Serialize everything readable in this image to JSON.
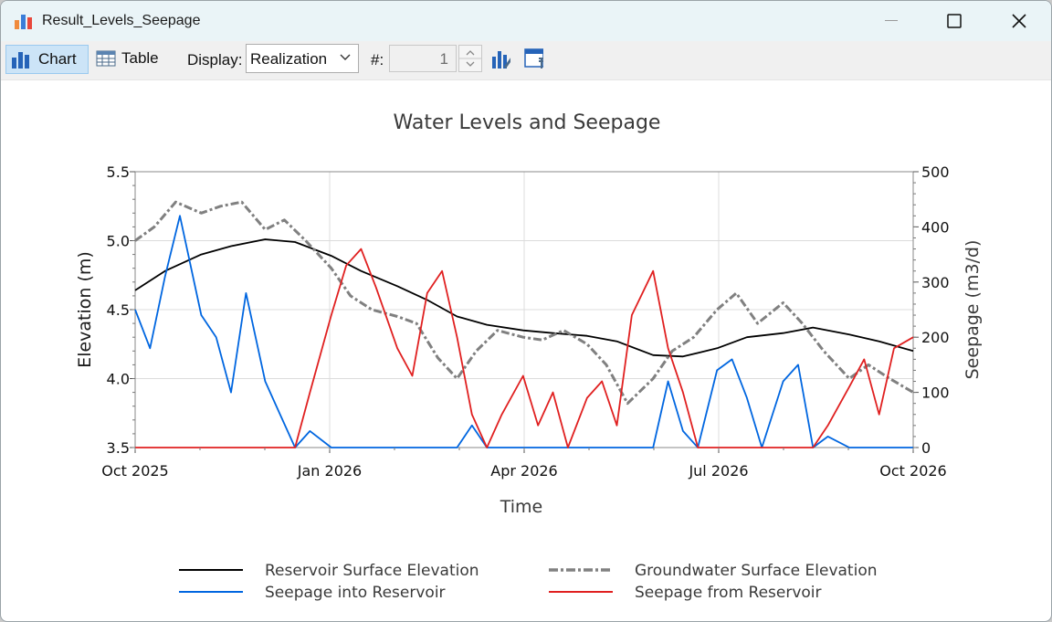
{
  "window": {
    "title": "Result_Levels_Seepage"
  },
  "toolbar": {
    "chart_label": "Chart",
    "table_label": "Table",
    "display_label": "Display:",
    "display_value": "Realization",
    "number_label": "#:",
    "number_value": "1"
  },
  "chart_data": {
    "type": "line",
    "title": "Water Levels and Seepage",
    "xlabel": "Time",
    "ylabel_left": "Elevation (m)",
    "ylabel_right": "Seepage (m3/d)",
    "x_ticks": [
      "Oct 2025",
      "Jan 2026",
      "Apr 2026",
      "Jul 2026",
      "Oct 2026"
    ],
    "x_range": [
      "2025-10-01",
      "2026-10-01"
    ],
    "ylim_left": [
      3.5,
      5.5
    ],
    "yticks_left": [
      "3.5",
      "4.0",
      "4.5",
      "5.0",
      "5.5"
    ],
    "ylim_right": [
      0,
      500
    ],
    "yticks_right": [
      "0",
      "100",
      "200",
      "300",
      "400",
      "500"
    ],
    "grid": true,
    "legend_position": "bottom",
    "series": [
      {
        "name": "Reservoir Surface Elevation",
        "axis": "left",
        "color": "#000000",
        "style": "solid",
        "x": [
          "2025-10-01",
          "2025-10-15",
          "2025-11-01",
          "2025-11-15",
          "2025-12-01",
          "2025-12-15",
          "2026-01-01",
          "2026-01-15",
          "2026-02-01",
          "2026-02-15",
          "2026-03-01",
          "2026-03-15",
          "2026-04-01",
          "2026-04-15",
          "2026-05-01",
          "2026-05-15",
          "2026-06-01",
          "2026-06-15",
          "2026-07-01",
          "2026-07-15",
          "2026-08-01",
          "2026-08-15",
          "2026-09-01",
          "2026-09-15",
          "2026-10-01"
        ],
        "values": [
          4.64,
          4.78,
          4.9,
          4.96,
          5.01,
          4.99,
          4.89,
          4.78,
          4.67,
          4.57,
          4.45,
          4.39,
          4.35,
          4.33,
          4.31,
          4.27,
          4.17,
          4.16,
          4.22,
          4.3,
          4.33,
          4.37,
          4.32,
          4.27,
          4.2
        ]
      },
      {
        "name": "Groundwater Surface Elevation",
        "axis": "left",
        "color": "#808080",
        "style": "dashdot",
        "x": [
          "2025-10-01",
          "2025-10-10",
          "2025-10-20",
          "2025-11-01",
          "2025-11-10",
          "2025-11-20",
          "2025-12-01",
          "2025-12-10",
          "2025-12-20",
          "2026-01-01",
          "2026-01-10",
          "2026-01-20",
          "2026-02-01",
          "2026-02-10",
          "2026-02-20",
          "2026-03-01",
          "2026-03-10",
          "2026-03-20",
          "2026-04-01",
          "2026-04-10",
          "2026-04-20",
          "2026-05-01",
          "2026-05-10",
          "2026-05-20",
          "2026-06-01",
          "2026-06-10",
          "2026-06-20",
          "2026-07-01",
          "2026-07-10",
          "2026-07-20",
          "2026-08-01",
          "2026-08-10",
          "2026-08-20",
          "2026-09-01",
          "2026-09-10",
          "2026-09-20",
          "2026-10-01"
        ],
        "values": [
          5.0,
          5.1,
          5.28,
          5.2,
          5.25,
          5.28,
          5.08,
          5.15,
          5.0,
          4.8,
          4.6,
          4.5,
          4.45,
          4.4,
          4.15,
          4.0,
          4.2,
          4.35,
          4.3,
          4.28,
          4.35,
          4.25,
          4.1,
          3.82,
          4.0,
          4.2,
          4.3,
          4.5,
          4.62,
          4.4,
          4.55,
          4.4,
          4.2,
          4.0,
          4.1,
          4.0,
          3.9
        ]
      },
      {
        "name": "Seepage into Reservoir",
        "axis": "right",
        "color": "#0066e0",
        "style": "solid",
        "x": [
          "2025-10-01",
          "2025-10-08",
          "2025-10-15",
          "2025-10-22",
          "2025-11-01",
          "2025-11-08",
          "2025-11-15",
          "2025-11-22",
          "2025-12-01",
          "2025-12-08",
          "2025-12-15",
          "2025-12-22",
          "2026-01-01",
          "2026-03-01",
          "2026-03-08",
          "2026-03-15",
          "2026-03-22",
          "2026-04-01",
          "2026-06-01",
          "2026-06-08",
          "2026-06-15",
          "2026-06-22",
          "2026-07-01",
          "2026-07-08",
          "2026-07-15",
          "2026-07-22",
          "2026-08-01",
          "2026-08-08",
          "2026-08-15",
          "2026-08-22",
          "2026-09-01",
          "2026-10-01"
        ],
        "values": [
          250,
          180,
          310,
          420,
          240,
          200,
          100,
          280,
          120,
          60,
          0,
          30,
          0,
          0,
          40,
          0,
          0,
          0,
          0,
          120,
          30,
          0,
          140,
          160,
          90,
          0,
          120,
          150,
          0,
          20,
          0,
          0
        ]
      },
      {
        "name": "Seepage from Reservoir",
        "axis": "right",
        "color": "#e02020",
        "style": "solid",
        "x": [
          "2025-10-01",
          "2025-12-15",
          "2025-12-22",
          "2026-01-01",
          "2026-01-08",
          "2026-01-15",
          "2026-01-22",
          "2026-02-01",
          "2026-02-08",
          "2026-02-15",
          "2026-02-22",
          "2026-03-01",
          "2026-03-08",
          "2026-03-15",
          "2026-03-22",
          "2026-04-01",
          "2026-04-08",
          "2026-04-15",
          "2026-04-22",
          "2026-05-01",
          "2026-05-08",
          "2026-05-15",
          "2026-05-22",
          "2026-06-01",
          "2026-06-08",
          "2026-06-15",
          "2026-06-22",
          "2026-07-01",
          "2026-08-15",
          "2026-08-22",
          "2026-09-01",
          "2026-09-08",
          "2026-09-15",
          "2026-09-22",
          "2026-10-01"
        ],
        "values": [
          0,
          0,
          100,
          240,
          330,
          360,
          290,
          180,
          130,
          280,
          320,
          200,
          60,
          0,
          60,
          130,
          40,
          100,
          0,
          90,
          120,
          40,
          240,
          320,
          180,
          100,
          0,
          0,
          0,
          40,
          110,
          160,
          60,
          180,
          200
        ]
      }
    ]
  },
  "legend": {
    "items": [
      {
        "label": "Reservoir Surface Elevation",
        "color": "#000000",
        "style": "solid"
      },
      {
        "label": "Groundwater Surface Elevation",
        "color": "#808080",
        "style": "dashdot"
      },
      {
        "label": "Seepage into Reservoir",
        "color": "#0066e0",
        "style": "solid"
      },
      {
        "label": "Seepage from Reservoir",
        "color": "#e02020",
        "style": "solid"
      }
    ]
  }
}
